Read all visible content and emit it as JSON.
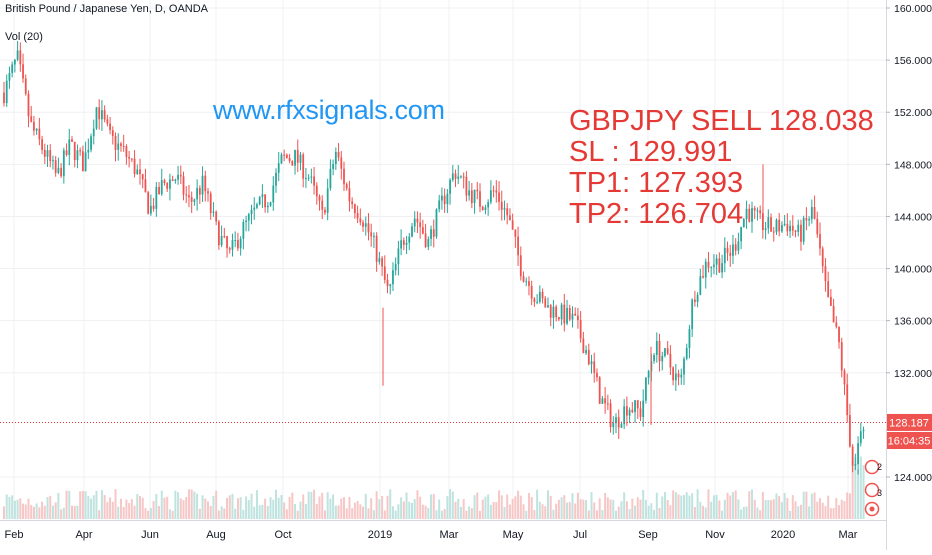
{
  "header": {
    "symbol_line": "British Pound / Japanese Yen, D, OANDA",
    "volume_label": "Vol (20)"
  },
  "watermark": "www.rfxsignals.com",
  "signal": {
    "line1": "GBPJPY SELL 128.038",
    "line2": "SL : 129.991",
    "line3": "TP1: 127.393",
    "line4": "TP2: 126.704"
  },
  "price_badges": {
    "last_price": "128.187",
    "countdown": "16:04:35"
  },
  "side_markers": [
    "2",
    "3"
  ],
  "colors": {
    "up": "#26a69a",
    "down": "#ef5350",
    "watermark": "#2196f3",
    "signal_text": "#e53935",
    "price_line": "#e53935",
    "grid": "#eef0f3"
  },
  "chart_data": {
    "type": "candlestick",
    "symbol": "GBPJPY",
    "timeframe": "D",
    "y_axis": {
      "ticks": [
        "160.000",
        "156.000",
        "152.000",
        "148.000",
        "144.000",
        "140.000",
        "136.000",
        "132.000",
        "124.000"
      ],
      "ylim": [
        121.5,
        160.5
      ]
    },
    "x_axis": {
      "ticks": [
        "Feb",
        "Apr",
        "Jun",
        "Aug",
        "Oct",
        "2019",
        "Mar",
        "May",
        "Jul",
        "Sep",
        "Nov",
        "2020",
        "Mar"
      ]
    },
    "last_price": 128.187,
    "price_path": [
      {
        "t": "Feb",
        "p": 153.5
      },
      {
        "t": "",
        "p": 156.2
      },
      {
        "t": "",
        "p": 151.0
      },
      {
        "t": "",
        "p": 149.0
      },
      {
        "t": "",
        "p": 147.0
      },
      {
        "t": "",
        "p": 149.5
      },
      {
        "t": "",
        "p": 148.0
      },
      {
        "t": "Apr",
        "p": 152.5
      },
      {
        "t": "",
        "p": 150.0
      },
      {
        "t": "",
        "p": 149.0
      },
      {
        "t": "",
        "p": 147.5
      },
      {
        "t": "",
        "p": 144.5
      },
      {
        "t": "Jun",
        "p": 146.5
      },
      {
        "t": "",
        "p": 147.0
      },
      {
        "t": "",
        "p": 145.0
      },
      {
        "t": "",
        "p": 146.5
      },
      {
        "t": "",
        "p": 143.0
      },
      {
        "t": "Aug",
        "p": 141.0
      },
      {
        "t": "",
        "p": 143.0
      },
      {
        "t": "",
        "p": 144.5
      },
      {
        "t": "",
        "p": 145.5
      },
      {
        "t": "",
        "p": 148.5
      },
      {
        "t": "Oct",
        "p": 148.5
      },
      {
        "t": "",
        "p": 147.0
      },
      {
        "t": "",
        "p": 144.0
      },
      {
        "t": "",
        "p": 149.0
      },
      {
        "t": "",
        "p": 145.5
      },
      {
        "t": "",
        "p": 144.0
      },
      {
        "t": "",
        "p": 141.5
      },
      {
        "t": "2019",
        "p": 138.0
      },
      {
        "t": "",
        "p": 142.0
      },
      {
        "t": "",
        "p": 144.0
      },
      {
        "t": "",
        "p": 142.0
      },
      {
        "t": "",
        "p": 145.0
      },
      {
        "t": "Mar",
        "p": 147.5
      },
      {
        "t": "",
        "p": 146.0
      },
      {
        "t": "",
        "p": 145.0
      },
      {
        "t": "",
        "p": 146.0
      },
      {
        "t": "May",
        "p": 144.0
      },
      {
        "t": "",
        "p": 140.0
      },
      {
        "t": "",
        "p": 138.0
      },
      {
        "t": "",
        "p": 137.0
      },
      {
        "t": "",
        "p": 136.5
      },
      {
        "t": "Jul",
        "p": 136.0
      },
      {
        "t": "",
        "p": 133.5
      },
      {
        "t": "",
        "p": 130.0
      },
      {
        "t": "",
        "p": 128.0
      },
      {
        "t": "",
        "p": 129.5
      },
      {
        "t": "Sep",
        "p": 129.0
      },
      {
        "t": "",
        "p": 134.0
      },
      {
        "t": "",
        "p": 133.0
      },
      {
        "t": "",
        "p": 131.0
      },
      {
        "t": "",
        "p": 138.0
      },
      {
        "t": "Nov",
        "p": 140.5
      },
      {
        "t": "",
        "p": 140.5
      },
      {
        "t": "",
        "p": 141.5
      },
      {
        "t": "",
        "p": 144.5
      },
      {
        "t": "",
        "p": 143.5
      },
      {
        "t": "2020",
        "p": 143.0
      },
      {
        "t": "",
        "p": 143.5
      },
      {
        "t": "",
        "p": 142.5
      },
      {
        "t": "",
        "p": 144.5
      },
      {
        "t": "Mar",
        "p": 138.0
      },
      {
        "t": "",
        "p": 134.0
      },
      {
        "t": "",
        "p": 125.0
      },
      {
        "t": "",
        "p": 128.2
      }
    ],
    "volume_series": "Vol (20)"
  }
}
